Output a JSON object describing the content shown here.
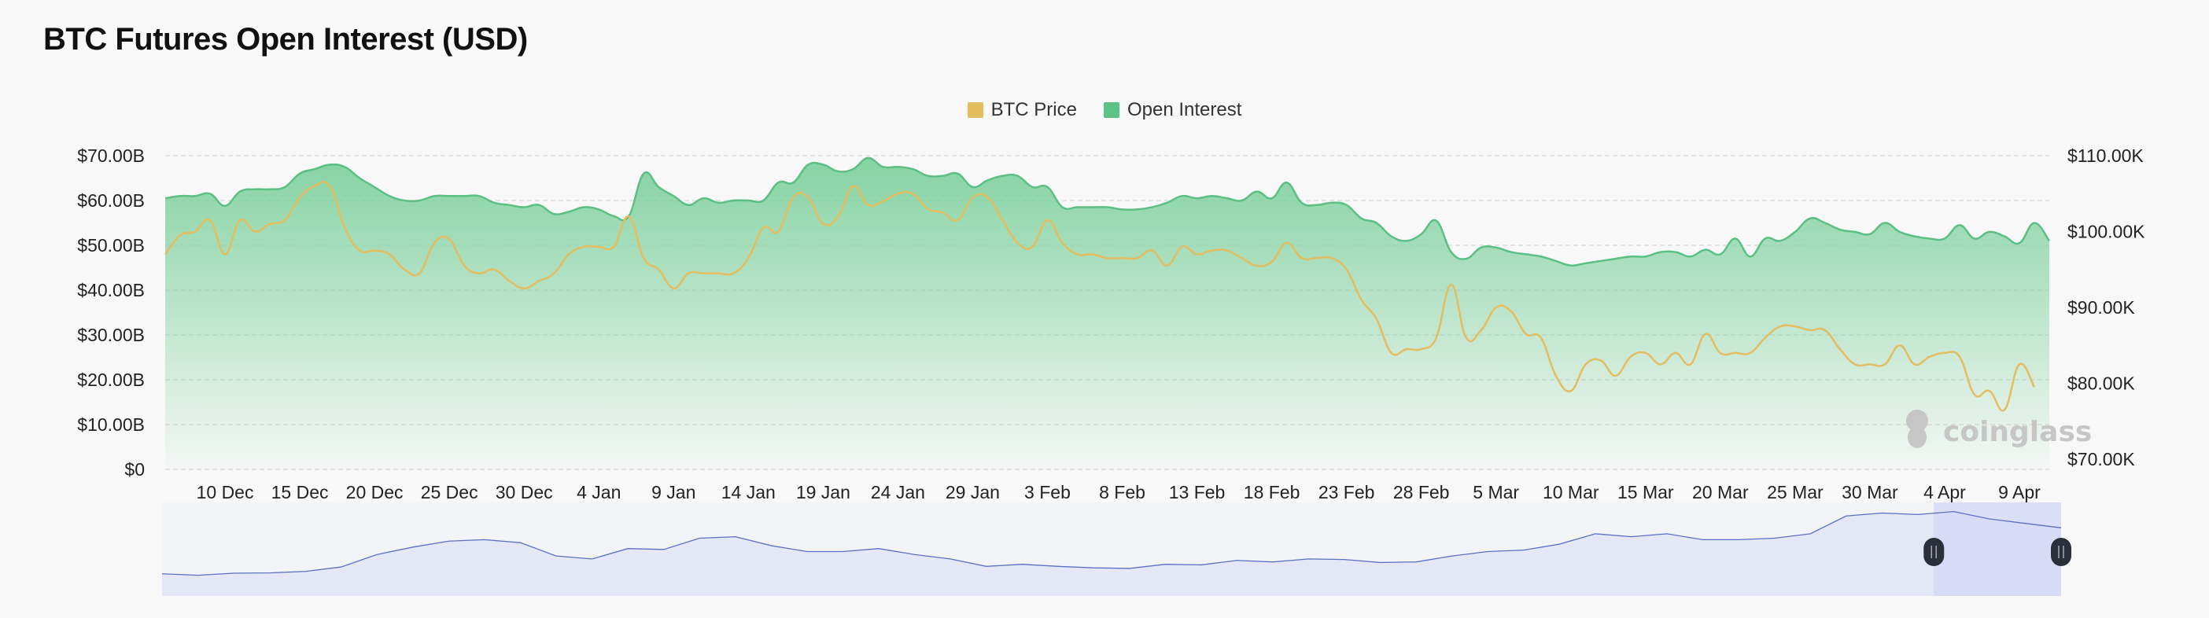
{
  "title": "BTC Futures Open Interest (USD)",
  "watermark": "coinglass",
  "colors": {
    "price": "#e3bd5f",
    "oi_line": "#5cbf83",
    "oi_fill_top": "#7fd19e",
    "navigator_line": "#5b6fc4",
    "navigator_fill": "#e4e7f6",
    "navigator_selection": "#d3d8f5",
    "handle": "#2b2f3a"
  },
  "legend": [
    {
      "label": "BTC Price",
      "color": "#e3bd5f",
      "icon": "square-icon"
    },
    {
      "label": "Open Interest",
      "color": "#5dc487",
      "icon": "square-icon"
    }
  ],
  "chart_data": {
    "type": "area",
    "start_date": "6 Dec",
    "x_tick_labels": [
      "10 Dec",
      "15 Dec",
      "20 Dec",
      "25 Dec",
      "30 Dec",
      "4 Jan",
      "9 Jan",
      "14 Jan",
      "19 Jan",
      "24 Jan",
      "29 Jan",
      "3 Feb",
      "8 Feb",
      "13 Feb",
      "18 Feb",
      "23 Feb",
      "28 Feb",
      "5 Mar",
      "10 Mar",
      "15 Mar",
      "20 Mar",
      "25 Mar",
      "30 Mar",
      "4 Apr",
      "9 Apr"
    ],
    "y_left": {
      "ticks": [
        "$0",
        "$10.00B",
        "$20.00B",
        "$30.00B",
        "$40.00B",
        "$50.00B",
        "$60.00B",
        "$70.00B"
      ],
      "range": [
        0,
        70
      ],
      "unit": "B USD"
    },
    "y_right": {
      "ticks": [
        "$70.00K",
        "$80.00K",
        "$90.00K",
        "$100.00K",
        "$110.00K"
      ],
      "range": [
        70,
        110
      ],
      "unit": "K USD"
    },
    "grid": true,
    "legend_position": "top-center",
    "series": [
      {
        "name": "Open Interest",
        "axis": "left",
        "type": "area",
        "values": [
          60.5,
          61,
          61,
          61.5,
          58.8,
          62,
          62.5,
          62.5,
          63,
          66,
          67,
          68,
          67.5,
          65,
          63,
          61,
          60,
          60,
          61,
          61,
          61,
          61,
          59.5,
          59,
          58.5,
          59,
          57,
          57.5,
          58.5,
          58,
          56.5,
          56.5,
          66,
          63,
          61,
          59,
          60.5,
          59.5,
          60,
          60,
          60,
          64,
          64,
          68,
          68,
          66.5,
          67,
          69.5,
          67.5,
          67.5,
          67,
          65.5,
          65.5,
          66,
          63,
          64.5,
          65.5,
          65.5,
          63,
          63,
          58.5,
          58.5,
          58.5,
          58.5,
          58,
          58,
          58.5,
          59.5,
          61,
          60.5,
          61,
          60.5,
          60,
          62,
          60.5,
          64,
          59.5,
          59,
          59.5,
          59,
          56,
          55,
          52,
          51,
          52.5,
          55.5,
          48.5,
          47,
          49.5,
          49.5,
          48.5,
          48,
          47.5,
          46.5,
          45.5,
          46,
          46.5,
          47,
          47.5,
          47.5,
          48.5,
          48.5,
          47.5,
          49,
          48,
          51.5,
          47.5,
          51.5,
          51,
          53,
          56,
          55,
          53.5,
          53,
          52.5,
          55,
          53,
          52,
          51.5,
          51.5,
          54.5,
          51.5,
          53,
          52,
          50.5,
          55,
          51
        ]
      },
      {
        "name": "BTC Price",
        "axis": "right",
        "type": "line",
        "values": [
          97,
          99.5,
          100,
          101.5,
          97,
          101.5,
          100,
          101,
          101.5,
          104.5,
          106,
          106,
          100.5,
          97.5,
          97.5,
          97,
          95,
          94.5,
          98.5,
          99,
          95.5,
          94.5,
          95,
          93.5,
          92.5,
          93.5,
          94.5,
          97,
          98,
          98,
          98,
          102,
          96.5,
          95,
          92.5,
          94.5,
          94.5,
          94.5,
          94.5,
          96.5,
          100.5,
          100,
          104.5,
          104.5,
          101,
          102,
          106,
          103.5,
          104,
          105,
          105,
          103,
          102.5,
          101.5,
          104.5,
          104.5,
          101.5,
          98.5,
          98,
          101.5,
          98.5,
          97,
          97,
          96.5,
          96.5,
          96.5,
          97.5,
          95.5,
          98,
          97,
          97.5,
          97.5,
          96.5,
          95.5,
          96,
          98.5,
          96.5,
          96.5,
          96.5,
          95,
          91,
          88.5,
          84,
          84.5,
          84.5,
          86,
          93,
          86,
          87,
          90,
          89.5,
          86.5,
          86,
          81,
          79,
          82.5,
          83,
          81,
          83.5,
          84,
          82.5,
          84,
          82.5,
          86.5,
          84,
          84,
          84,
          86,
          87.5,
          87.5,
          87,
          87,
          84.5,
          82.5,
          82.5,
          82.5,
          85,
          82.5,
          83.5,
          84,
          83.5,
          78.5,
          79,
          76.5,
          82.5,
          79.5
        ]
      }
    ],
    "navigator": {
      "values": [
        75,
        70,
        77,
        78,
        83,
        98,
        140,
        165,
        185,
        190,
        180,
        135,
        125,
        160,
        157,
        195,
        200,
        170,
        150,
        150,
        160,
        140,
        125,
        100,
        107,
        100,
        95,
        93,
        107,
        105,
        120,
        115,
        125,
        123,
        113,
        115,
        135,
        150,
        155,
        175,
        210,
        200,
        210,
        190,
        190,
        195,
        210,
        270,
        280,
        275,
        285,
        260,
        245,
        230
      ],
      "selected_fraction": [
        0.933,
        1.0
      ]
    }
  }
}
